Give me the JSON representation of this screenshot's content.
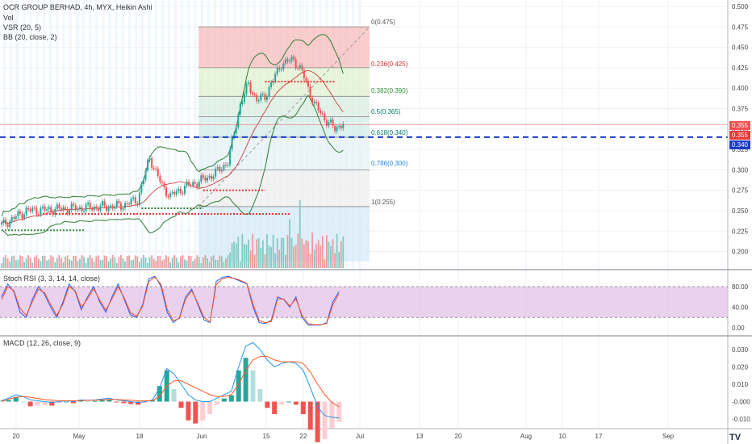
{
  "legend": {
    "title": "OCR GROUP BERHAD, 4h, MYX, Heikin Ashi",
    "vol": "Vol",
    "vsr": "VSR (20, 5)",
    "bb": "BB (20, close, 2)",
    "stoch": "Stoch RSI (3, 3, 14, 14, close)",
    "macd": "MACD (12, 26, close, 9)"
  },
  "price_tags": {
    "a": {
      "text": "0.355",
      "color": "#ef5350"
    },
    "b": {
      "text": "0.355",
      "color": "#e53935"
    },
    "c": {
      "text": "0.340",
      "color": "#1a3cc9"
    }
  },
  "watermark": "TV",
  "colors": {
    "up": "#26a69a",
    "down": "#ef5350",
    "bb": "#2e7d32",
    "k": "#2962ff",
    "d": "#f4511e",
    "dashed": "#1a3cc9"
  },
  "chart_data": [
    {
      "type": "candlestick",
      "title": "OCR GROUP BERHAD, 4h, MYX, Heikin Ashi",
      "x_ticks": [
        "20",
        "May",
        "18",
        "Jun",
        "15",
        "22",
        "Jul",
        "13",
        "20",
        "Aug",
        "10",
        "17",
        "Sep"
      ],
      "y_ticks": [
        "0.500",
        "0.475",
        "0.450",
        "0.425",
        "0.400",
        "0.375",
        "0.350",
        "0.325",
        "0.300",
        "0.275",
        "0.250",
        "0.225",
        "0.200"
      ],
      "ylim": [
        0.188,
        0.5
      ],
      "horizontal_line": 0.34,
      "fibonacci": [
        {
          "label": "0(0.475)",
          "value": 0.475
        },
        {
          "label": "0.236(0.425)",
          "value": 0.425
        },
        {
          "label": "0.382(0.390)",
          "value": 0.39
        },
        {
          "label": "0.5(0.365)",
          "value": 0.365
        },
        {
          "label": "0.618(0.340)",
          "value": 0.34
        },
        {
          "label": "0.786(0.300)",
          "value": 0.3
        },
        {
          "label": "1(0.255)",
          "value": 0.255
        }
      ],
      "close_anchors": [
        [
          0,
          0.232
        ],
        [
          12,
          0.25
        ],
        [
          28,
          0.252
        ],
        [
          44,
          0.254
        ],
        [
          58,
          0.256
        ],
        [
          66,
          0.263
        ],
        [
          72,
          0.315
        ],
        [
          78,
          0.28
        ],
        [
          82,
          0.268
        ],
        [
          90,
          0.28
        ],
        [
          98,
          0.288
        ],
        [
          104,
          0.296
        ],
        [
          110,
          0.31
        ],
        [
          116,
          0.38
        ],
        [
          120,
          0.405
        ],
        [
          124,
          0.385
        ],
        [
          128,
          0.39
        ],
        [
          136,
          0.43
        ],
        [
          142,
          0.435
        ],
        [
          146,
          0.42
        ],
        [
          152,
          0.38
        ],
        [
          158,
          0.36
        ],
        [
          162,
          0.35
        ],
        [
          166,
          0.358
        ]
      ],
      "n_bars": 167
    },
    {
      "type": "line",
      "title": "Stoch RSI (3, 3, 14, 14, close)",
      "y_ticks": [
        "80.00",
        "40.00",
        "0.00"
      ],
      "ylim": [
        0,
        100
      ],
      "band": [
        20,
        80
      ],
      "series": [
        {
          "values": [
            60,
            85,
            70,
            30,
            20,
            55,
            80,
            65,
            40,
            20,
            50,
            85,
            70,
            35,
            60,
            80,
            50,
            30,
            60,
            85,
            55,
            25,
            20,
            45,
            95,
            100,
            80,
            30,
            10,
            20,
            60,
            75,
            45,
            15,
            10,
            90,
            98,
            100,
            95,
            90,
            85,
            40,
            10,
            8,
            15,
            60,
            55,
            40,
            60,
            20,
            5,
            5,
            5,
            10,
            50,
            70
          ]
        },
        {
          "values": [
            55,
            80,
            72,
            38,
            24,
            50,
            75,
            68,
            45,
            24,
            46,
            80,
            72,
            40,
            56,
            76,
            54,
            34,
            56,
            80,
            58,
            30,
            22,
            42,
            90,
            98,
            84,
            36,
            14,
            18,
            56,
            72,
            48,
            20,
            12,
            84,
            95,
            98,
            96,
            92,
            86,
            46,
            14,
            10,
            12,
            56,
            56,
            42,
            56,
            24,
            8,
            6,
            6,
            8,
            44,
            66
          ]
        }
      ]
    },
    {
      "type": "bar",
      "title": "MACD (12, 26, close, 9)",
      "y_ticks": [
        "0.030",
        "0.020",
        "0.010",
        "-0.000",
        "-0.010"
      ],
      "ylim": [
        -0.0145,
        0.0355
      ],
      "series": [
        {
          "values": [
            0.0005,
            0.002,
            0.004,
            0.003,
            0.001,
            0.0005,
            0.0,
            -0.0005,
            0.0,
            0.0005,
            0.0,
            0.001,
            0.0008,
            0.001,
            0.0015,
            0.002,
            0.001,
            0.0005,
            0.0,
            -0.0005,
            0.0,
            0.001,
            0.008,
            0.019,
            0.016,
            0.01,
            0.004,
            0.001,
            0.0,
            0.0,
            0.002,
            0.004,
            0.006,
            0.02,
            0.032,
            0.034,
            0.03,
            0.024,
            0.02,
            0.022,
            0.023,
            0.022,
            0.018,
            0.008,
            -0.003,
            -0.008,
            -0.009,
            -0.0095
          ]
        },
        {
          "values": [
            0.0,
            0.0015,
            0.0025,
            0.003,
            0.0025,
            0.0018,
            0.0012,
            0.0008,
            0.0005,
            0.0005,
            0.0005,
            0.0006,
            0.0007,
            0.0008,
            0.001,
            0.0012,
            0.0012,
            0.001,
            0.0008,
            0.0005,
            0.0004,
            0.0006,
            0.003,
            0.009,
            0.012,
            0.012,
            0.01,
            0.008,
            0.006,
            0.004,
            0.003,
            0.003,
            0.004,
            0.01,
            0.018,
            0.024,
            0.026,
            0.026,
            0.024,
            0.023,
            0.023,
            0.023,
            0.022,
            0.017,
            0.01,
            0.004,
            -0.0005,
            -0.003
          ]
        }
      ]
    }
  ]
}
